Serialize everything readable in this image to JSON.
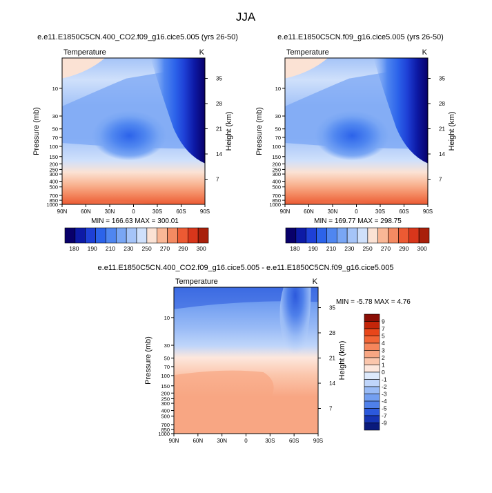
{
  "page_title": "JJA",
  "chart_data": [
    {
      "type": "heatmap",
      "id": "left",
      "title": "e.e11.E1850C5CN.400_CO2.f09_g16.cice5.005 (yrs 26-50)",
      "variable": "Temperature",
      "units": "K",
      "xlabel": "",
      "ylabel": "Pressure (mb)",
      "y2label": "Height (km)",
      "x_ticks": [
        "90N",
        "60N",
        "30N",
        "0",
        "30S",
        "60S",
        "90S"
      ],
      "y_ticks": [
        "10",
        "30",
        "50",
        "70",
        "100",
        "150",
        "200",
        "250",
        "300",
        "400",
        "500",
        "700",
        "850",
        "1000"
      ],
      "y2_ticks": [
        "35",
        "28",
        "21",
        "14",
        "7"
      ],
      "ylim": [
        1000,
        3
      ],
      "min": 166.63,
      "max": 300.01,
      "stats_text": "MIN = 166.63   MAX = 300.01",
      "levels": [
        "180",
        "190",
        "200",
        "210",
        "220",
        "230",
        "240",
        "250",
        "260",
        "270",
        "280",
        "290",
        "300"
      ],
      "level_labels": [
        "180",
        "190",
        "210",
        "230",
        "250",
        "270",
        "290",
        "300"
      ]
    },
    {
      "type": "heatmap",
      "id": "right",
      "title": "e.e11.E1850C5CN.f09_g16.cice5.005 (yrs 26-50)",
      "variable": "Temperature",
      "units": "K",
      "xlabel": "",
      "ylabel": "Pressure (mb)",
      "y2label": "Height (km)",
      "x_ticks": [
        "90N",
        "60N",
        "30N",
        "0",
        "30S",
        "60S",
        "90S"
      ],
      "y_ticks": [
        "10",
        "30",
        "50",
        "70",
        "100",
        "150",
        "200",
        "250",
        "300",
        "400",
        "500",
        "700",
        "850",
        "1000"
      ],
      "y2_ticks": [
        "35",
        "28",
        "21",
        "14",
        "7"
      ],
      "ylim": [
        1000,
        3
      ],
      "min": 169.77,
      "max": 298.75,
      "stats_text": "MIN = 169.77   MAX = 298.75",
      "levels": [
        "180",
        "190",
        "200",
        "210",
        "220",
        "230",
        "240",
        "250",
        "260",
        "270",
        "280",
        "290",
        "300"
      ],
      "level_labels": [
        "180",
        "190",
        "210",
        "230",
        "250",
        "270",
        "290",
        "300"
      ]
    },
    {
      "type": "heatmap",
      "id": "diff",
      "title": "e.e11.E1850C5CN.400_CO2.f09_g16.cice5.005 - e.e11.E1850C5CN.f09_g16.cice5.005",
      "variable": "Temperature",
      "units": "K",
      "xlabel": "",
      "ylabel": "Pressure (mb)",
      "y2label": "Height (km)",
      "x_ticks": [
        "90N",
        "60N",
        "30N",
        "0",
        "30S",
        "60S",
        "90S"
      ],
      "y_ticks": [
        "10",
        "30",
        "50",
        "70",
        "100",
        "150",
        "200",
        "250",
        "300",
        "400",
        "500",
        "700",
        "850",
        "1000"
      ],
      "y2_ticks": [
        "35",
        "28",
        "21",
        "14",
        "7"
      ],
      "ylim": [
        1000,
        3
      ],
      "min": -5.78,
      "max": 4.76,
      "stats_text": "MIN = -5.78   MAX =  4.76",
      "levels": [
        "9",
        "7",
        "5",
        "4",
        "3",
        "2",
        "1",
        "0",
        "-1",
        "-2",
        "-3",
        "-4",
        "-5",
        "-7",
        "-9"
      ]
    }
  ],
  "colors": {
    "blue_red_scale": [
      "#08006a",
      "#0d1aa6",
      "#1e40d6",
      "#2c63ea",
      "#4f86f0",
      "#79a6f4",
      "#a5c4f8",
      "#cfe0fb",
      "#fbe2d4",
      "#f9b796",
      "#f48a62",
      "#ec5a33",
      "#d8361b",
      "#a81f0a"
    ],
    "diff_scale": [
      "#8b0e05",
      "#c42509",
      "#e8461a",
      "#f26536",
      "#f6865c",
      "#f8a683",
      "#fbc6ac",
      "#fde7dd",
      "#dde9fb",
      "#bfd5fa",
      "#99bbf6",
      "#739ff1",
      "#4f80ea",
      "#2c59dc",
      "#1634b3",
      "#0a1a7c"
    ]
  }
}
